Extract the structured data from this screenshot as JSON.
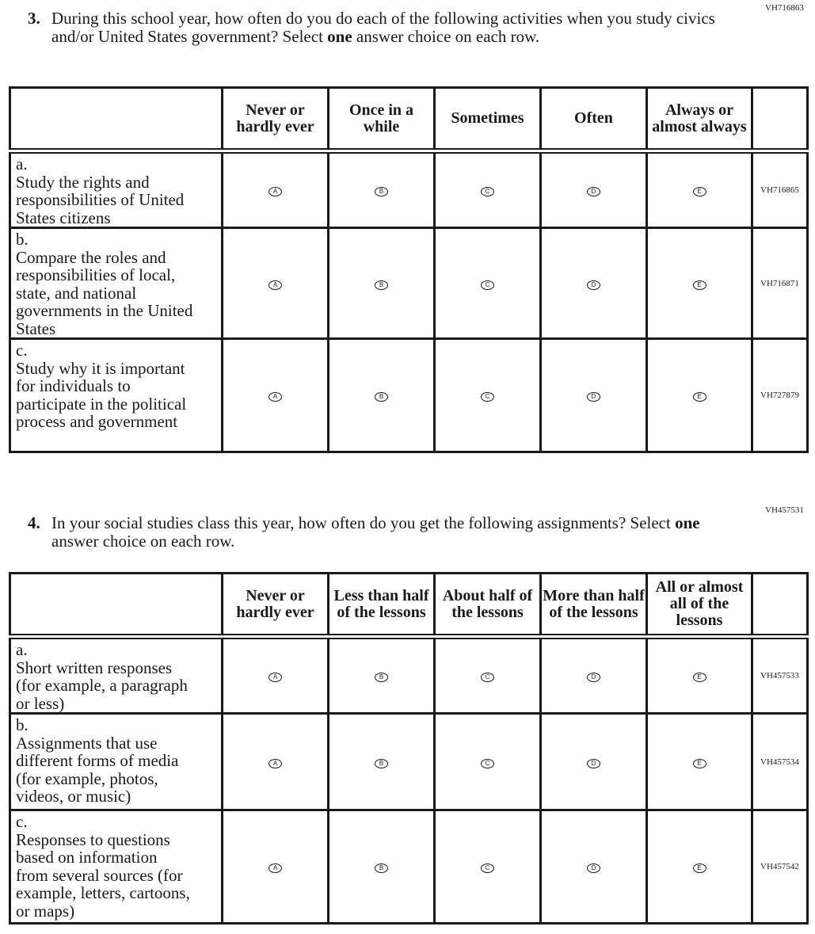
{
  "q3": {
    "id": "VH716863",
    "number": "3.",
    "text_before": "During this school year, how often do you do each of the following activities when you study civics and/or United States government? Select ",
    "emphasis": "one",
    "text_after": " answer choice on each row.",
    "columns": [
      "Never or hardly ever",
      "Once in a while",
      "Sometimes",
      "Often",
      "Always or almost always"
    ],
    "rows": [
      {
        "letter": "a.",
        "text": "Study the rights and responsibilities of United States citizens",
        "id": "VH716865"
      },
      {
        "letter": "b.",
        "text": "Compare the roles and responsibilities of local, state, and national governments in the United States",
        "id": "VH716871"
      },
      {
        "letter": "c.",
        "text": "Study why it is important for individuals to participate in the political process and government",
        "id": "VH727879"
      }
    ]
  },
  "q4": {
    "id": "VH457531",
    "number": "4.",
    "text_before": "In your social studies class this year, how often do you get the following assignments? Select ",
    "emphasis": "one",
    "text_after": " answer choice on each row.",
    "columns": [
      "Never or hardly ever",
      "Less than half of the lessons",
      "About half of the lessons",
      "More than half of the lessons",
      "All or almost all of the lessons"
    ],
    "rows": [
      {
        "letter": "a.",
        "text": "Short written responses (for example, a paragraph or less)",
        "id": "VH457533"
      },
      {
        "letter": "b.",
        "text": "Assignments that use different forms of media (for example, photos, videos, or music)",
        "id": "VH457534"
      },
      {
        "letter": "c.",
        "text": "Responses to questions based on information from several sources (for example, letters, cartoons, or maps)",
        "id": "VH457542"
      }
    ]
  },
  "bubble_letters": [
    "A",
    "B",
    "C",
    "D",
    "E"
  ]
}
